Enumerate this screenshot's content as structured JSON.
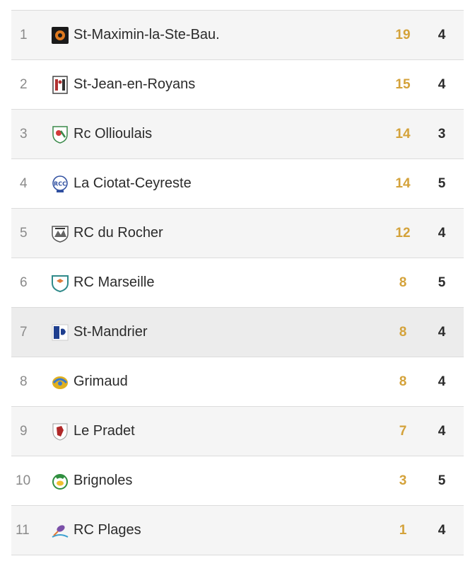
{
  "standings": [
    {
      "rank": "1",
      "team": "St-Maximin-la-Ste-Bau.",
      "points": "19",
      "played": "4",
      "logo_icon": "st-maximin-crest-icon",
      "logo_color": "#222222"
    },
    {
      "rank": "2",
      "team": "St-Jean-en-Royans",
      "points": "15",
      "played": "4",
      "logo_icon": "st-jean-crest-icon",
      "logo_color": "#b03030"
    },
    {
      "rank": "3",
      "team": "Rc Ollioulais",
      "points": "14",
      "played": "3",
      "logo_icon": "ollioulais-crest-icon",
      "logo_color": "#3a8a4a"
    },
    {
      "rank": "4",
      "team": "La Ciotat-Ceyreste",
      "points": "14",
      "played": "5",
      "logo_icon": "ciotat-crest-icon",
      "logo_color": "#2f4fa0"
    },
    {
      "rank": "5",
      "team": "RC du Rocher",
      "points": "12",
      "played": "4",
      "logo_icon": "rocher-crest-icon",
      "logo_color": "#555555"
    },
    {
      "rank": "6",
      "team": "RC Marseille",
      "points": "8",
      "played": "5",
      "logo_icon": "marseille-crest-icon",
      "logo_color": "#2f8a8a"
    },
    {
      "rank": "7",
      "team": "St-Mandrier",
      "points": "8",
      "played": "4",
      "logo_icon": "st-mandrier-crest-icon",
      "logo_color": "#1f3f8f"
    },
    {
      "rank": "8",
      "team": "Grimaud",
      "points": "8",
      "played": "4",
      "logo_icon": "grimaud-crest-icon",
      "logo_color": "#e0b020"
    },
    {
      "rank": "9",
      "team": "Le Pradet",
      "points": "7",
      "played": "4",
      "logo_icon": "pradet-crest-icon",
      "logo_color": "#b02828"
    },
    {
      "rank": "10",
      "team": "Brignoles",
      "points": "3",
      "played": "5",
      "logo_icon": "brignoles-crest-icon",
      "logo_color": "#2f8f3f"
    },
    {
      "rank": "11",
      "team": "RC Plages",
      "points": "1",
      "played": "4",
      "logo_icon": "plages-crest-icon",
      "logo_color": "#7a4fa8"
    }
  ],
  "colors": {
    "points_accent": "#d4a23a",
    "row_odd": "#f5f5f5",
    "row_even": "#ffffff",
    "row_highlight": "#ececec"
  }
}
